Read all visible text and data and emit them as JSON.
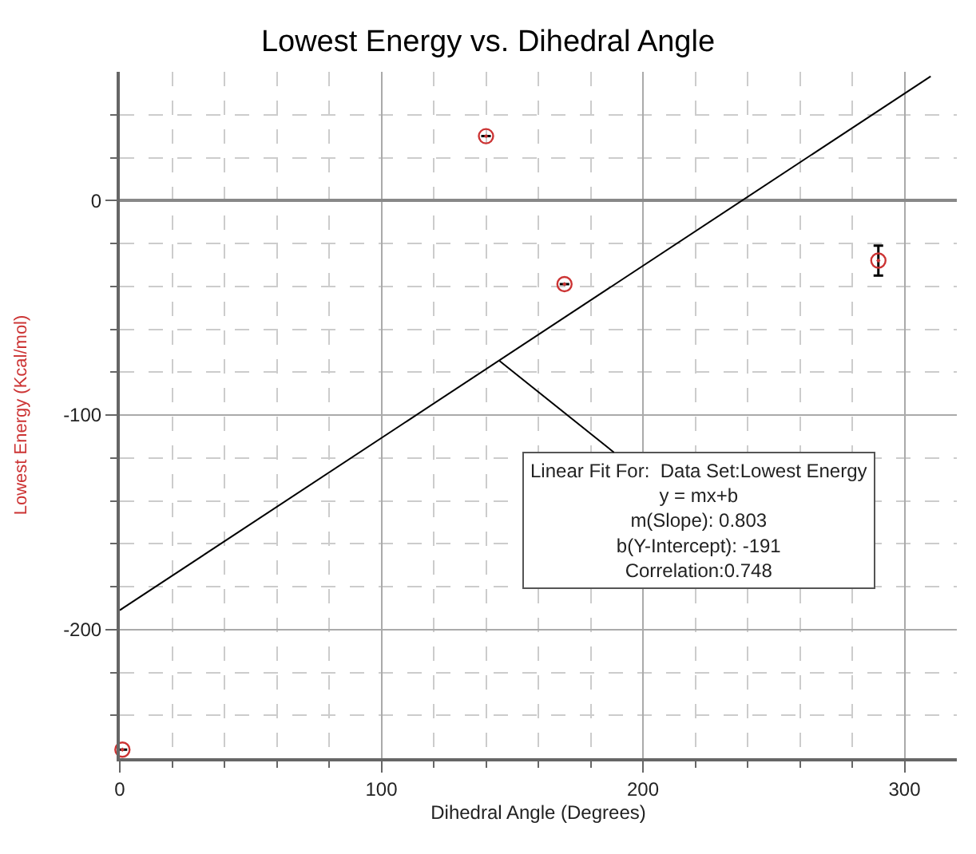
{
  "chart_data": {
    "type": "scatter",
    "title": "Lowest Energy vs. Dihedral Angle",
    "xlabel": "Dihedral Angle (Degrees)",
    "ylabel": "Lowest Energy (Kcal/mol)",
    "series": [
      {
        "color": "#cc3333",
        "x": [
          140,
          170,
          290,
          1
        ],
        "values": [
          30,
          -39,
          -28,
          -256
        ],
        "errors": [
          null,
          null,
          7,
          null
        ],
        "marker": "circle"
      },
      {
        "type": "line",
        "color": "#000000",
        "x": [
          0,
          310
        ],
        "values": [
          -191,
          57.9
        ],
        "marker": "none",
        "line_style": "solid"
      }
    ],
    "annotations": [
      {
        "text": "Linear Fit For:  Data Set:Lowest Energy\ny = mx+b\nm(Slope): 0.803\nb(Y-Intercept): -191\nCorrelation:0.748",
        "x": 145,
        "y": -74.6
      }
    ],
    "xlim": [
      0,
      320
    ],
    "ylim": [
      -260,
      60
    ],
    "xticks": [
      0,
      {
        "value": 20,
        "label": null
      },
      {
        "value": 40,
        "label": null
      },
      {
        "value": 60,
        "label": null
      },
      {
        "value": 80,
        "label": null
      },
      100,
      {
        "value": 120,
        "label": null
      },
      {
        "value": 140,
        "label": null
      },
      {
        "value": 160,
        "label": null
      },
      {
        "value": 180,
        "label": null
      },
      200,
      {
        "value": 220,
        "label": null
      },
      {
        "value": 240,
        "label": null
      },
      {
        "value": 260,
        "label": null
      },
      {
        "value": 280,
        "label": null
      },
      300
    ],
    "yticks": [
      {
        "value": -240,
        "label": null
      },
      {
        "value": -220,
        "label": null
      },
      -200,
      {
        "value": -180,
        "label": null
      },
      {
        "value": -160,
        "label": null
      },
      {
        "value": -140,
        "label": null
      },
      {
        "value": -120,
        "label": null
      },
      -100,
      {
        "value": -80,
        "label": null
      },
      {
        "value": -60,
        "label": null
      },
      {
        "value": -40,
        "label": null
      },
      {
        "value": -20,
        "label": null
      },
      0,
      {
        "value": 20,
        "label": null
      },
      {
        "value": 40,
        "label": null
      }
    ],
    "grid": true
  }
}
